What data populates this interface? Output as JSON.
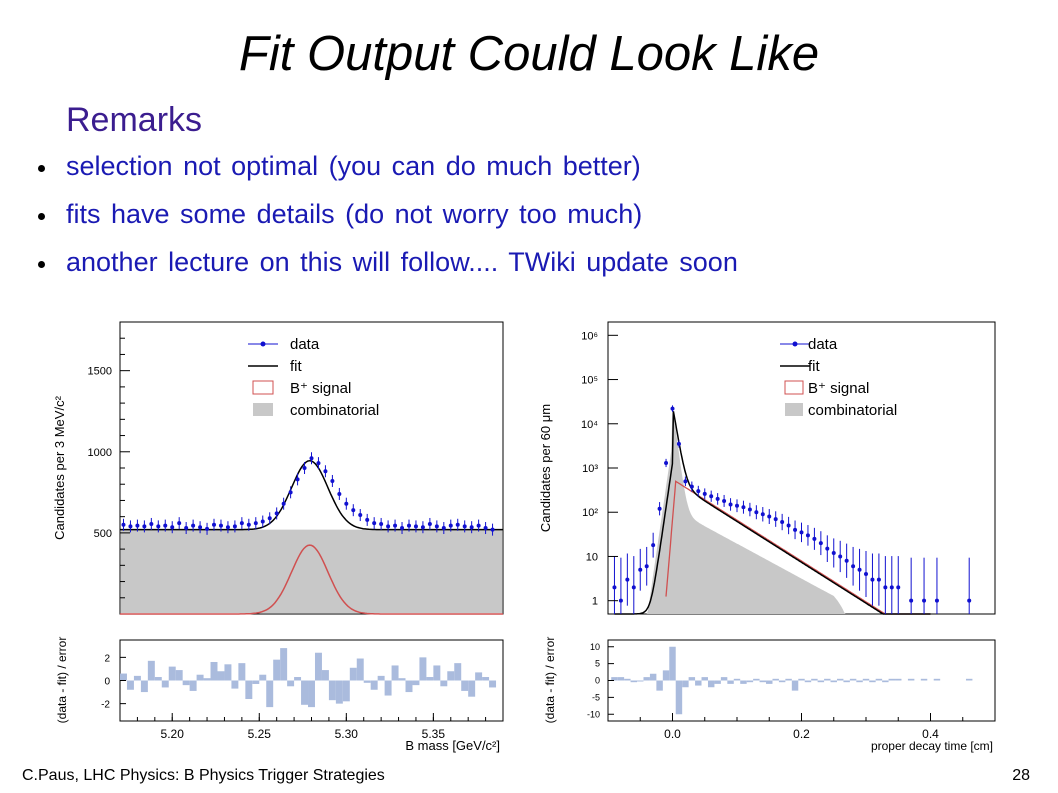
{
  "slide": {
    "title": "Fit Output Could Look Like",
    "remarks": "Remarks",
    "bullets": [
      "selection not optimal (you can do much better)",
      "fits have some details (do not worry too much)",
      "another lecture on this will follow.... TWiki update soon"
    ],
    "footer_left": "C.Paus, LHC Physics: B Physics Trigger Strategies",
    "page_number": "28"
  },
  "colors": {
    "title": "#000000",
    "remarks": "#3b1d8f",
    "bullets": "#1a1ab3",
    "data_points": "#1010d0",
    "fit_line": "#000000",
    "signal_line": "#d05050",
    "combinatorial_fill": "#c8c8c8",
    "residual_bars": "#aabbdd"
  },
  "chart_data": [
    {
      "type": "line",
      "panel": "left-main",
      "title": "",
      "xlabel": "B mass [GeV/c²]",
      "ylabel": "Candidates per 3 MeV/c²",
      "xlim": [
        5.17,
        5.39
      ],
      "ylim": [
        0,
        1800
      ],
      "y_ticks": [
        "500",
        "1000",
        "1500"
      ],
      "legend": [
        "data",
        "fit",
        "B⁺ signal",
        "combinatorial"
      ],
      "legend_position": "top-right",
      "x": [
        5.172,
        5.176,
        5.18,
        5.184,
        5.188,
        5.192,
        5.196,
        5.2,
        5.204,
        5.208,
        5.212,
        5.216,
        5.22,
        5.224,
        5.228,
        5.232,
        5.236,
        5.24,
        5.244,
        5.248,
        5.252,
        5.256,
        5.26,
        5.264,
        5.268,
        5.272,
        5.276,
        5.28,
        5.284,
        5.288,
        5.292,
        5.296,
        5.3,
        5.304,
        5.308,
        5.312,
        5.316,
        5.32,
        5.324,
        5.328,
        5.332,
        5.336,
        5.34,
        5.344,
        5.348,
        5.352,
        5.356,
        5.36,
        5.364,
        5.368,
        5.372,
        5.376,
        5.38,
        5.384
      ],
      "series": [
        {
          "name": "data",
          "values": [
            550,
            540,
            545,
            540,
            555,
            540,
            545,
            535,
            560,
            530,
            545,
            535,
            525,
            550,
            545,
            535,
            540,
            560,
            550,
            560,
            570,
            590,
            620,
            680,
            750,
            830,
            900,
            960,
            930,
            880,
            820,
            740,
            680,
            640,
            610,
            580,
            560,
            555,
            540,
            545,
            530,
            545,
            540,
            535,
            555,
            540,
            530,
            545,
            550,
            540,
            535,
            545,
            530,
            520
          ]
        }
      ],
      "combinatorial_level": 520,
      "signal_peak": {
        "mean": 5.279,
        "sigma": 0.0105,
        "amplitude": 425
      }
    },
    {
      "type": "bar",
      "panel": "left-residual",
      "xlabel": "B mass [GeV/c²]",
      "ylabel": "(data - fit) / error",
      "x_ticks": [
        "5.20",
        "5.25",
        "5.30",
        "5.35"
      ],
      "y_ticks": [
        "2",
        "0",
        "-2"
      ],
      "ylim": [
        -3.5,
        3.5
      ],
      "x": [
        5.172,
        5.176,
        5.18,
        5.184,
        5.188,
        5.192,
        5.196,
        5.2,
        5.204,
        5.208,
        5.212,
        5.216,
        5.22,
        5.224,
        5.228,
        5.232,
        5.236,
        5.24,
        5.244,
        5.248,
        5.252,
        5.256,
        5.26,
        5.264,
        5.268,
        5.272,
        5.276,
        5.28,
        5.284,
        5.288,
        5.292,
        5.296,
        5.3,
        5.304,
        5.308,
        5.312,
        5.316,
        5.32,
        5.324,
        5.328,
        5.332,
        5.336,
        5.34,
        5.344,
        5.348,
        5.352,
        5.356,
        5.36,
        5.364,
        5.368,
        5.372,
        5.376,
        5.38,
        5.384
      ],
      "values": [
        0.6,
        -0.8,
        0.4,
        -1.0,
        1.7,
        0.3,
        -0.6,
        1.2,
        0.9,
        -0.4,
        -0.9,
        0.5,
        0.2,
        1.6,
        0.8,
        1.4,
        -0.7,
        1.5,
        -1.6,
        -0.3,
        0.5,
        -2.3,
        1.8,
        2.8,
        -0.5,
        0.3,
        -2.1,
        -2.3,
        2.4,
        0.9,
        -1.7,
        -2.0,
        -1.8,
        1.1,
        1.9,
        -0.2,
        -0.8,
        0.4,
        -1.3,
        1.3,
        0.2,
        -1.0,
        -0.4,
        2.0,
        0.3,
        1.3,
        -0.5,
        0.8,
        1.5,
        -0.9,
        -1.4,
        0.7,
        0.3,
        -0.6
      ]
    },
    {
      "type": "line",
      "panel": "right-main",
      "title": "",
      "xlabel": "proper decay time [cm]",
      "ylabel": "Candidates per 60 μm",
      "y_scale": "log",
      "xlim": [
        -0.1,
        0.5
      ],
      "ylim": [
        0.5,
        2000000
      ],
      "y_ticks": [
        "1",
        "10",
        "10²",
        "10³",
        "10⁴",
        "10⁵",
        "10⁶"
      ],
      "legend": [
        "data",
        "fit",
        "B⁺ signal",
        "combinatorial"
      ],
      "legend_position": "top-right",
      "x": [
        -0.09,
        -0.08,
        -0.07,
        -0.06,
        -0.05,
        -0.04,
        -0.03,
        -0.02,
        -0.01,
        0.0,
        0.01,
        0.02,
        0.03,
        0.04,
        0.05,
        0.06,
        0.07,
        0.08,
        0.09,
        0.1,
        0.11,
        0.12,
        0.13,
        0.14,
        0.15,
        0.16,
        0.17,
        0.18,
        0.19,
        0.2,
        0.21,
        0.22,
        0.23,
        0.24,
        0.25,
        0.26,
        0.27,
        0.28,
        0.29,
        0.3,
        0.31,
        0.32,
        0.33,
        0.34,
        0.35,
        0.37,
        0.39,
        0.41,
        0.46
      ],
      "series": [
        {
          "name": "data",
          "values": [
            2,
            1,
            3,
            2,
            5,
            6,
            18,
            120,
            1300,
            22000,
            3500,
            500,
            380,
            300,
            260,
            230,
            200,
            180,
            150,
            140,
            130,
            115,
            100,
            90,
            80,
            70,
            60,
            50,
            40,
            35,
            30,
            25,
            20,
            15,
            12,
            10,
            8,
            6,
            5,
            4,
            3,
            3,
            2,
            2,
            2,
            1,
            1,
            1,
            1
          ]
        }
      ]
    },
    {
      "type": "bar",
      "panel": "right-residual",
      "xlabel": "proper decay time [cm]",
      "ylabel": "(data - fit) / error",
      "x_ticks": [
        "0.0",
        "0.2",
        "0.4"
      ],
      "y_ticks": [
        "10",
        "5",
        "0",
        "-5",
        "-10"
      ],
      "ylim": [
        -12,
        12
      ],
      "x": [
        -0.09,
        -0.08,
        -0.07,
        -0.06,
        -0.05,
        -0.04,
        -0.03,
        -0.02,
        -0.01,
        0.0,
        0.01,
        0.02,
        0.03,
        0.04,
        0.05,
        0.06,
        0.07,
        0.08,
        0.09,
        0.1,
        0.11,
        0.12,
        0.13,
        0.14,
        0.15,
        0.16,
        0.17,
        0.18,
        0.19,
        0.2,
        0.21,
        0.22,
        0.23,
        0.24,
        0.25,
        0.26,
        0.27,
        0.28,
        0.29,
        0.3,
        0.31,
        0.32,
        0.33,
        0.34,
        0.35,
        0.37,
        0.39,
        0.41,
        0.46
      ],
      "values": [
        1,
        1,
        0.5,
        -0.5,
        0,
        1,
        2,
        -3,
        3,
        10,
        -10,
        -2,
        1,
        -1.5,
        1,
        -2,
        -1,
        1,
        -1,
        0.5,
        -1,
        -0.5,
        0.5,
        -0.5,
        -1,
        0.5,
        -0.5,
        0.5,
        -3,
        0.5,
        -0.5,
        0.5,
        -0.5,
        0.5,
        -0.5,
        0.5,
        -0.5,
        0.5,
        -0.5,
        0.5,
        -0.5,
        0.5,
        -0.5,
        0.5,
        0.5,
        0.5,
        0.5,
        0.5,
        0.5
      ]
    }
  ]
}
